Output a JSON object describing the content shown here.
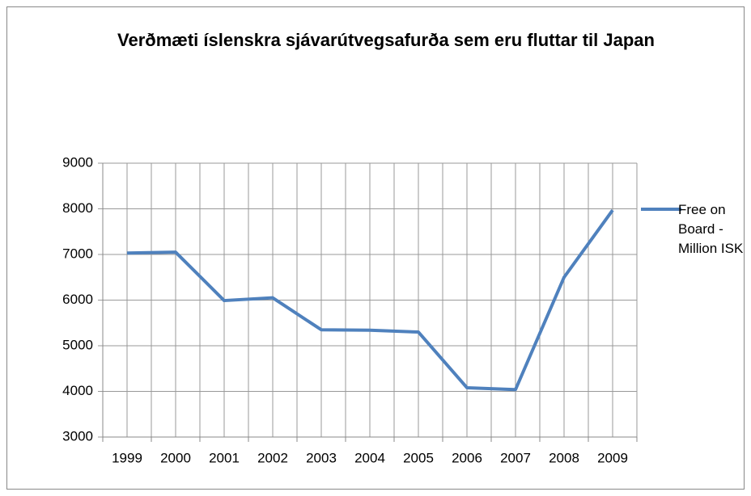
{
  "chart_data": {
    "type": "line",
    "title": "Verðmæti íslenskra sjávarútvegsafurða sem eru fluttar til Japan",
    "categories": [
      "1999",
      "2000",
      "2001",
      "2002",
      "2003",
      "2004",
      "2005",
      "2006",
      "2007",
      "2008",
      "2009"
    ],
    "series": [
      {
        "name": "Free on Board - Million ISK",
        "color": "#4f81bd",
        "values": [
          7030,
          7050,
          5990,
          6050,
          5350,
          5340,
          5300,
          4080,
          4040,
          6500,
          7970
        ]
      }
    ],
    "ylim": [
      3000,
      9000
    ],
    "yticks": [
      3000,
      4000,
      5000,
      6000,
      7000,
      8000,
      9000
    ],
    "grid": true,
    "legend": "right"
  }
}
